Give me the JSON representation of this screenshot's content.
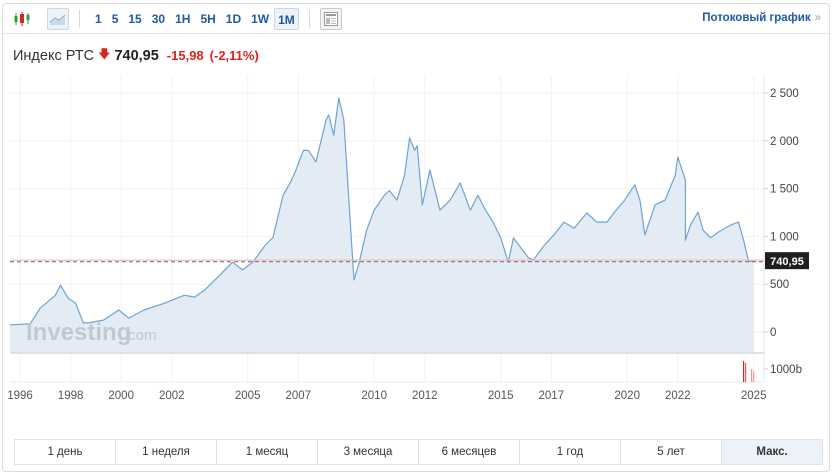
{
  "toolbar": {
    "chart_type_icons": [
      "candlestick-icon",
      "area-chart-icon"
    ],
    "timeframes": [
      "1",
      "5",
      "15",
      "30",
      "1H",
      "5H",
      "1D",
      "1W",
      "1M"
    ],
    "active_timeframe": "1M",
    "layout_icon": "layout-icon",
    "stream_link": "Потоковый график",
    "stream_chevron": "»"
  },
  "quote": {
    "name": "Индекс РТС",
    "direction_icon": "down-arrow-icon",
    "price": "740,95",
    "change": "-15,98",
    "change_pct": "(-2,11%)",
    "up_color": "#1e5aa8",
    "down_color": "#d9251d"
  },
  "watermark": {
    "brand": "Investing",
    "suffix": ".com"
  },
  "price_label": "740,95",
  "volume_label": "1000b",
  "ranges": [
    "1 день",
    "1 неделя",
    "1 месяц",
    "3 месяца",
    "6 месяцев",
    "1 год",
    "5 лет",
    "Макс."
  ],
  "active_range": "Макс.",
  "chart_data": {
    "type": "area",
    "title": "Индекс РТС",
    "xlabel": "",
    "ylabel": "",
    "ylim": [
      0,
      2500
    ],
    "yticks": [
      0,
      500,
      1000,
      1500,
      2000,
      2500
    ],
    "ytick_labels": [
      "0",
      "500",
      "1 000",
      "1 500",
      "2 000",
      "2 500"
    ],
    "xtick_labels": [
      "1996",
      "1998",
      "2000",
      "2002",
      "2005",
      "2007",
      "2010",
      "2012",
      "2015",
      "2017",
      "2020",
      "2022",
      "2025"
    ],
    "grid": true,
    "legend": "none",
    "current_value": 740.95,
    "series": [
      {
        "name": "Индекс РТС",
        "x": [
          1995.7,
          1996.4,
          1996.8,
          1997.4,
          1997.6,
          1997.9,
          1998.2,
          1998.5,
          1998.7,
          1999.3,
          1999.9,
          2000.3,
          2000.9,
          2001.7,
          2002.5,
          2002.9,
          2003.3,
          2003.9,
          2004.4,
          2004.8,
          2005.2,
          2005.7,
          2006.0,
          2006.4,
          2006.7,
          2006.9,
          2007.2,
          2007.4,
          2007.7,
          2008.1,
          2008.2,
          2008.4,
          2008.6,
          2008.8,
          2009.1,
          2009.2,
          2009.4,
          2009.7,
          2010.0,
          2010.4,
          2010.6,
          2010.9,
          2011.2,
          2011.4,
          2011.6,
          2011.7,
          2011.9,
          2012.2,
          2012.6,
          2013.0,
          2013.4,
          2013.8,
          2014.1,
          2014.4,
          2014.7,
          2015.0,
          2015.3,
          2015.5,
          2015.8,
          2016.1,
          2016.3,
          2016.7,
          2017.1,
          2017.5,
          2017.9,
          2018.4,
          2018.8,
          2019.2,
          2019.5,
          2019.9,
          2020.3,
          2020.5,
          2020.7,
          2021.1,
          2021.5,
          2021.9,
          2022.0,
          2022.3,
          2022.3,
          2022.5,
          2022.8,
          2023.0,
          2023.3,
          2023.6,
          2024.1,
          2024.4,
          2024.6,
          2024.8,
          2025.0
        ],
        "values": [
          75,
          85,
          250,
          385,
          490,
          355,
          300,
          95,
          95,
          125,
          230,
          145,
          230,
          300,
          385,
          365,
          440,
          595,
          730,
          650,
          730,
          910,
          990,
          1430,
          1570,
          1690,
          1900,
          1900,
          1780,
          2220,
          2270,
          2060,
          2450,
          2220,
          960,
          545,
          720,
          1065,
          1275,
          1430,
          1480,
          1380,
          1640,
          2030,
          1900,
          1950,
          1330,
          1695,
          1275,
          1380,
          1560,
          1275,
          1430,
          1275,
          1150,
          985,
          730,
          985,
          880,
          775,
          755,
          900,
          1015,
          1150,
          1085,
          1245,
          1150,
          1150,
          1255,
          1380,
          1540,
          1380,
          1015,
          1330,
          1380,
          1640,
          1830,
          1590,
          960,
          1120,
          1255,
          1065,
          985,
          1045,
          1120,
          1150,
          960,
          740,
          741
        ]
      }
    ],
    "volume": {
      "label": "1000b",
      "bars_recent": true
    }
  }
}
